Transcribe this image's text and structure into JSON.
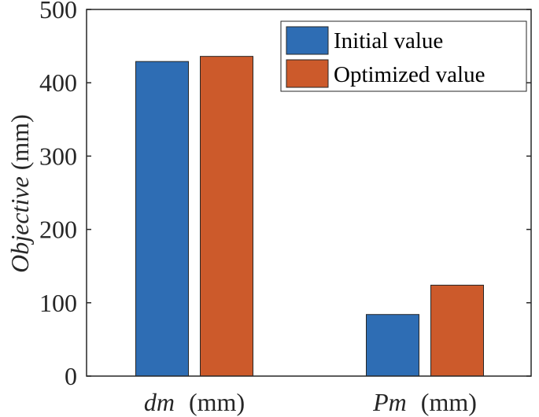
{
  "chart_data": {
    "type": "bar",
    "title": "",
    "xlabel": "",
    "ylabel": {
      "italic": "Objective",
      "unit": " (mm)"
    },
    "categories": [
      {
        "italic": "dm",
        "unit": " (mm)"
      },
      {
        "italic": "Pm",
        "unit": " (mm)"
      }
    ],
    "series": [
      {
        "name": "Initial value",
        "color": "#2E6DB4",
        "values": [
          429,
          84
        ]
      },
      {
        "name": "Optimized value",
        "color": "#CC5A2B",
        "values": [
          436,
          124
        ]
      }
    ],
    "ylim": [
      0,
      500
    ],
    "yticks": [
      "0",
      "100",
      "200",
      "300",
      "400",
      "500"
    ],
    "grid": false,
    "legend_position": "top-right"
  }
}
